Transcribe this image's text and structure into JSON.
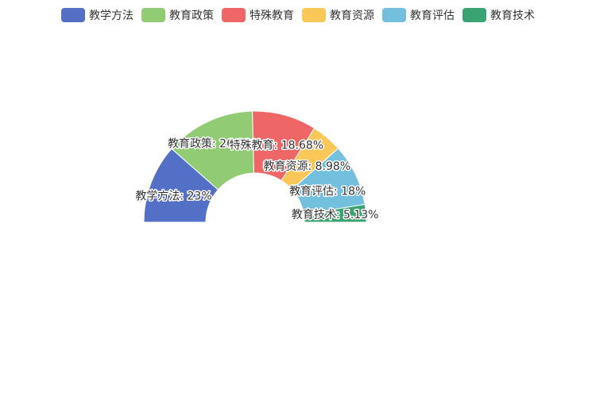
{
  "chart_data": {
    "type": "pie",
    "variant": "half-donut",
    "legend_position": "top",
    "categories": [
      "教学方法",
      "教育政策",
      "特殊教育",
      "教育资源",
      "教育评估",
      "教育技术"
    ],
    "values": [
      23,
      26.23,
      18.68,
      8.98,
      18,
      5.13
    ],
    "labels": [
      "教学方法: 23%",
      "教育政策: 26.23%",
      "特殊教育: 18.68%",
      "教育资源: 8.98%",
      "教育评估: 18%",
      "教育技术: 5.13%"
    ],
    "colors": [
      "#5470c6",
      "#91cc75",
      "#ee6666",
      "#fac858",
      "#73c0de",
      "#3ba272"
    ]
  }
}
